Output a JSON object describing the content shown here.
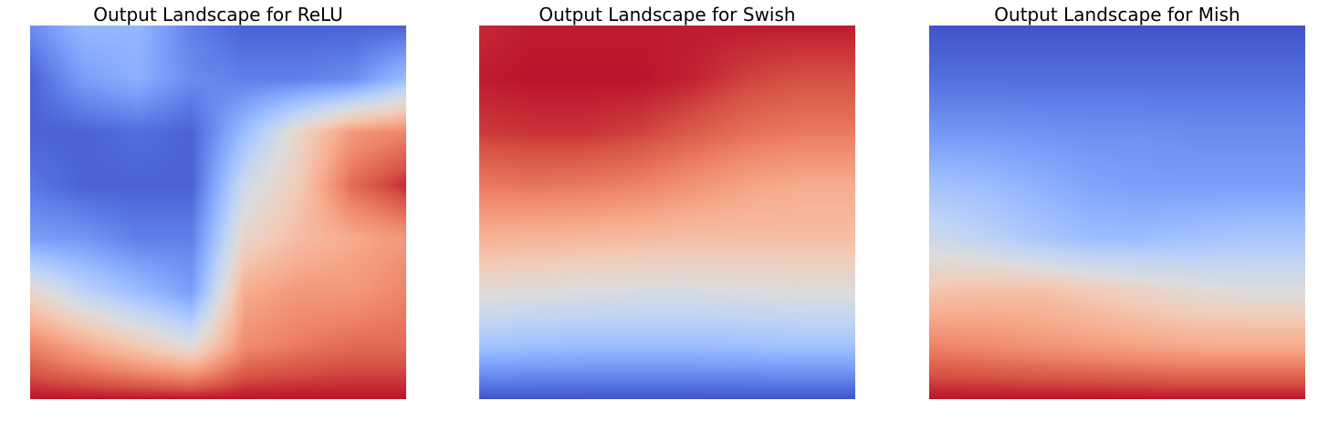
{
  "colormap": {
    "name": "coolwarm",
    "stops": [
      "#3b4cc0",
      "#5a78e4",
      "#7b9ff9",
      "#9ebeff",
      "#c0d4f5",
      "#dddcdc",
      "#f2cbb7",
      "#f7ac8e",
      "#ee8468",
      "#d65244",
      "#b40426"
    ]
  },
  "chart_data": [
    {
      "type": "heatmap",
      "title": "Output Landscape for ReLU",
      "axis": "off",
      "grid": false,
      "xlim": [
        0,
        1
      ],
      "ylim": [
        0,
        1
      ],
      "value_range": [
        0,
        1
      ],
      "rows": 8,
      "cols": 8,
      "values": [
        [
          0.15,
          0.28,
          0.28,
          0.12,
          0.05,
          0.05,
          0.05,
          0.05
        ],
        [
          0.05,
          0.2,
          0.25,
          0.15,
          0.12,
          0.12,
          0.15,
          0.3
        ],
        [
          0.05,
          0.05,
          0.08,
          0.05,
          0.3,
          0.55,
          0.75,
          0.8
        ],
        [
          0.1,
          0.05,
          0.05,
          0.05,
          0.45,
          0.6,
          0.85,
          0.95
        ],
        [
          0.2,
          0.18,
          0.12,
          0.12,
          0.55,
          0.65,
          0.7,
          0.75
        ],
        [
          0.55,
          0.4,
          0.3,
          0.2,
          0.7,
          0.75,
          0.75,
          0.8
        ],
        [
          0.8,
          0.7,
          0.6,
          0.5,
          0.78,
          0.82,
          0.85,
          0.85
        ],
        [
          0.98,
          0.98,
          0.98,
          0.98,
          0.98,
          0.98,
          0.98,
          0.98
        ]
      ]
    },
    {
      "type": "heatmap",
      "title": "Output Landscape for Swish",
      "axis": "off",
      "grid": false,
      "xlim": [
        0,
        1
      ],
      "ylim": [
        0,
        1
      ],
      "value_range": [
        0,
        1
      ],
      "rows": 8,
      "cols": 8,
      "values": [
        [
          0.95,
          0.97,
          0.97,
          0.97,
          0.97,
          0.97,
          0.97,
          0.97
        ],
        [
          0.97,
          0.98,
          0.98,
          0.98,
          0.96,
          0.92,
          0.9,
          0.9
        ],
        [
          0.93,
          0.94,
          0.94,
          0.92,
          0.88,
          0.84,
          0.82,
          0.82
        ],
        [
          0.82,
          0.83,
          0.82,
          0.8,
          0.76,
          0.72,
          0.7,
          0.7
        ],
        [
          0.68,
          0.67,
          0.66,
          0.65,
          0.64,
          0.64,
          0.64,
          0.64
        ],
        [
          0.52,
          0.5,
          0.49,
          0.48,
          0.48,
          0.49,
          0.5,
          0.5
        ],
        [
          0.32,
          0.31,
          0.3,
          0.3,
          0.3,
          0.31,
          0.32,
          0.32
        ],
        [
          0.02,
          0.02,
          0.02,
          0.02,
          0.02,
          0.02,
          0.02,
          0.02
        ]
      ]
    },
    {
      "type": "heatmap",
      "title": "Output Landscape for Mish",
      "axis": "off",
      "grid": false,
      "xlim": [
        0,
        1
      ],
      "ylim": [
        0,
        1
      ],
      "value_range": [
        0,
        1
      ],
      "rows": 8,
      "cols": 8,
      "values": [
        [
          0.02,
          0.02,
          0.02,
          0.02,
          0.02,
          0.02,
          0.02,
          0.02
        ],
        [
          0.08,
          0.08,
          0.08,
          0.08,
          0.08,
          0.08,
          0.08,
          0.08
        ],
        [
          0.18,
          0.18,
          0.17,
          0.16,
          0.16,
          0.15,
          0.15,
          0.15
        ],
        [
          0.32,
          0.3,
          0.26,
          0.22,
          0.2,
          0.2,
          0.2,
          0.2
        ],
        [
          0.45,
          0.4,
          0.34,
          0.3,
          0.3,
          0.32,
          0.34,
          0.34
        ],
        [
          0.62,
          0.64,
          0.64,
          0.6,
          0.56,
          0.52,
          0.5,
          0.5
        ],
        [
          0.8,
          0.78,
          0.76,
          0.74,
          0.72,
          0.7,
          0.7,
          0.7
        ],
        [
          0.98,
          0.98,
          0.98,
          0.98,
          0.98,
          0.98,
          0.98,
          0.98
        ]
      ]
    }
  ]
}
